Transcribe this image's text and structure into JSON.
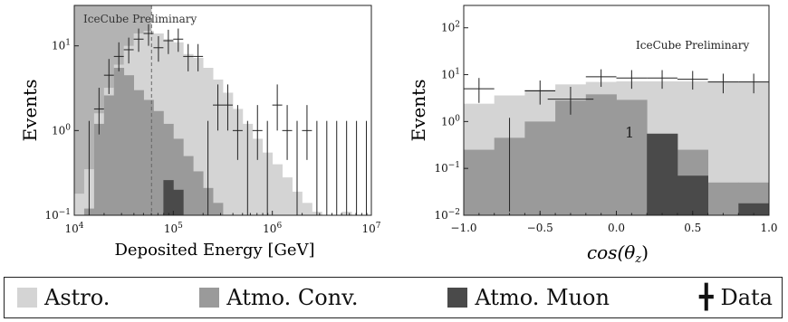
{
  "colors": {
    "astro": "#d4d4d4",
    "conv": "#9a9a9a",
    "muon": "#4a4a4a",
    "shade": "#b3b3b3",
    "data": "#222222"
  },
  "legend": {
    "astro": "Astro.",
    "conv": "Atmo. Conv.",
    "muon": "Atmo. Muon",
    "data": "Data",
    "data_icon": "data-crosshair-icon"
  },
  "chart_data": [
    {
      "type": "bar",
      "title": "",
      "annotation": "IceCube Preliminary",
      "xlabel": "Deposited Energy [GeV]",
      "ylabel": "Events",
      "xscale": "log",
      "yscale": "log",
      "xlim": [
        10000,
        10000000
      ],
      "ylim": [
        0.1,
        30
      ],
      "xticks": [
        "10^4",
        "10^5",
        "10^6",
        "10^7"
      ],
      "yticks": [
        "10^-1",
        "10^0",
        "10^1"
      ],
      "bin_edges_log10": [
        4.0,
        4.1,
        4.2,
        4.3,
        4.4,
        4.5,
        4.6,
        4.7,
        4.8,
        4.9,
        5.0,
        5.1,
        5.2,
        5.3,
        5.4,
        5.5,
        5.6,
        5.7,
        5.8,
        5.9,
        6.0,
        6.1,
        6.2,
        6.3,
        6.4,
        6.5,
        6.6,
        6.7,
        6.8,
        6.9,
        7.0
      ],
      "shaded_region_log10": [
        4.0,
        4.78
      ],
      "series": [
        {
          "name": "Astro.",
          "values": [
            0.18,
            0.35,
            1.6,
            3.2,
            6,
            10,
            14,
            15,
            14,
            12,
            11,
            8,
            7.2,
            5.5,
            4,
            2.8,
            1.8,
            1.2,
            0.8,
            0.55,
            0.4,
            0.28,
            0.19,
            0.14,
            0.11,
            0.09,
            0.08,
            0.11,
            0.09,
            0
          ]
        },
        {
          "name": "Atmo. Conv.",
          "values": [
            0.1,
            0.12,
            1.2,
            2.6,
            5.5,
            4.5,
            3,
            2.3,
            1.7,
            1.2,
            0.8,
            0.5,
            0.33,
            0.21,
            0.14,
            0.1,
            0,
            0,
            0,
            0,
            0,
            0,
            0,
            0,
            0,
            0,
            0,
            0,
            0,
            0
          ]
        },
        {
          "name": "Atmo. Muon",
          "values": [
            0,
            0,
            0,
            0,
            0,
            0,
            0,
            0,
            0,
            0.26,
            0.2,
            0,
            0,
            0,
            0,
            0,
            0,
            0,
            0,
            0,
            0,
            0,
            0,
            0,
            0,
            0,
            0,
            0,
            0,
            0
          ]
        }
      ],
      "data_points": [
        {
          "x": 4.15,
          "y": 0.02,
          "ylo": 0.02,
          "yhi": 1.3
        },
        {
          "x": 4.25,
          "y": 1.8,
          "ylo": 0.9,
          "yhi": 3.2
        },
        {
          "x": 4.35,
          "y": 4.5,
          "ylo": 2.7,
          "yhi": 7.0
        },
        {
          "x": 4.45,
          "y": 7.5,
          "ylo": 5.0,
          "yhi": 11.0
        },
        {
          "x": 4.55,
          "y": 9.0,
          "ylo": 6.2,
          "yhi": 12.5
        },
        {
          "x": 4.65,
          "y": 12.0,
          "ylo": 8.5,
          "yhi": 16.0
        },
        {
          "x": 4.75,
          "y": 14.0,
          "ylo": 10.0,
          "yhi": 18.0
        },
        {
          "x": 4.85,
          "y": 9.5,
          "ylo": 6.5,
          "yhi": 13.0
        },
        {
          "x": 4.95,
          "y": 11.5,
          "ylo": 8.0,
          "yhi": 15.5
        },
        {
          "x": 5.05,
          "y": 12.0,
          "ylo": 8.5,
          "yhi": 16.0
        },
        {
          "x": 5.15,
          "y": 7.5,
          "ylo": 5.0,
          "yhi": 10.5
        },
        {
          "x": 5.25,
          "y": 7.5,
          "ylo": 5.0,
          "yhi": 10.5
        },
        {
          "x": 5.35,
          "y": 0.02,
          "ylo": 0.02,
          "yhi": 1.3
        },
        {
          "x": 5.45,
          "y": 2.0,
          "ylo": 1.0,
          "yhi": 3.5
        },
        {
          "x": 5.55,
          "y": 2.0,
          "ylo": 1.0,
          "yhi": 3.5
        },
        {
          "x": 5.65,
          "y": 1.0,
          "ylo": 0.45,
          "yhi": 2.0
        },
        {
          "x": 5.75,
          "y": 0.02,
          "ylo": 0.02,
          "yhi": 1.3
        },
        {
          "x": 5.85,
          "y": 1.0,
          "ylo": 0.45,
          "yhi": 2.0
        },
        {
          "x": 5.95,
          "y": 0.02,
          "ylo": 0.02,
          "yhi": 1.3
        },
        {
          "x": 6.05,
          "y": 2.0,
          "ylo": 1.0,
          "yhi": 3.5
        },
        {
          "x": 6.15,
          "y": 1.0,
          "ylo": 0.45,
          "yhi": 2.0
        },
        {
          "x": 6.25,
          "y": 0.02,
          "ylo": 0.02,
          "yhi": 1.3
        },
        {
          "x": 6.35,
          "y": 1.0,
          "ylo": 0.45,
          "yhi": 2.0
        },
        {
          "x": 6.45,
          "y": 0.02,
          "ylo": 0.02,
          "yhi": 1.3
        },
        {
          "x": 6.55,
          "y": 0.02,
          "ylo": 0.02,
          "yhi": 1.3
        },
        {
          "x": 6.65,
          "y": 0.02,
          "ylo": 0.02,
          "yhi": 1.3
        },
        {
          "x": 6.75,
          "y": 0.02,
          "ylo": 0.02,
          "yhi": 1.3
        },
        {
          "x": 6.85,
          "y": 0.02,
          "ylo": 0.02,
          "yhi": 1.3
        },
        {
          "x": 6.95,
          "y": 0.02,
          "ylo": 0.02,
          "yhi": 1.3
        }
      ]
    },
    {
      "type": "bar",
      "title": "",
      "annotation": "IceCube Preliminary",
      "xlabel": "cos(θz)",
      "ylabel": "Events",
      "yscale": "log",
      "xlim": [
        -1.0,
        1.0
      ],
      "ylim": [
        0.01,
        300
      ],
      "xticks": [
        "−1.0",
        "−0.5",
        "0.0",
        "0.5",
        "1.0"
      ],
      "yticks": [
        "10^-2",
        "10^-1",
        "10^0",
        "10^1",
        "10^2"
      ],
      "inline_label": "1",
      "bin_edges": [
        -1.0,
        -0.8,
        -0.6,
        -0.4,
        -0.2,
        0.0,
        0.2,
        0.4,
        0.6,
        0.8,
        1.0
      ],
      "series": [
        {
          "name": "Astro.",
          "values": [
            2.4,
            3.6,
            4.8,
            6.2,
            7.0,
            7.2,
            7.2,
            7.2,
            7.2,
            7.2
          ]
        },
        {
          "name": "Atmo. Conv.",
          "values": [
            0.25,
            0.45,
            1.0,
            2.8,
            3.8,
            2.9,
            0.55,
            0.25,
            0.05,
            0.05
          ]
        },
        {
          "name": "Atmo. Muon",
          "values": [
            0,
            0,
            0,
            0,
            0,
            0,
            0.55,
            0.07,
            0,
            0.018
          ]
        }
      ],
      "data_points": [
        {
          "x": -0.9,
          "y": 5.0,
          "ylo": 2.5,
          "yhi": 8.5,
          "xerr": 0.1
        },
        {
          "x": -0.7,
          "y": 0.012,
          "ylo": 0.012,
          "yhi": 1.2,
          "xerr": 0.0
        },
        {
          "x": -0.5,
          "y": 4.5,
          "ylo": 2.3,
          "yhi": 7.5,
          "xerr": 0.1
        },
        {
          "x": -0.3,
          "y": 3.0,
          "ylo": 1.4,
          "yhi": 5.5,
          "xerr": 0.15
        },
        {
          "x": -0.1,
          "y": 9.0,
          "ylo": 5.5,
          "yhi": 13.0,
          "xerr": 0.1
        },
        {
          "x": 0.1,
          "y": 8.5,
          "ylo": 5.0,
          "yhi": 12.5,
          "xerr": 0.1
        },
        {
          "x": 0.3,
          "y": 8.5,
          "ylo": 5.0,
          "yhi": 12.5,
          "xerr": 0.1
        },
        {
          "x": 0.5,
          "y": 8.0,
          "ylo": 4.8,
          "yhi": 12.0,
          "xerr": 0.1
        },
        {
          "x": 0.7,
          "y": 7.0,
          "ylo": 4.0,
          "yhi": 10.5,
          "xerr": 0.1
        },
        {
          "x": 0.9,
          "y": 7.0,
          "ylo": 4.0,
          "yhi": 10.5,
          "xerr": 0.1
        }
      ]
    }
  ]
}
